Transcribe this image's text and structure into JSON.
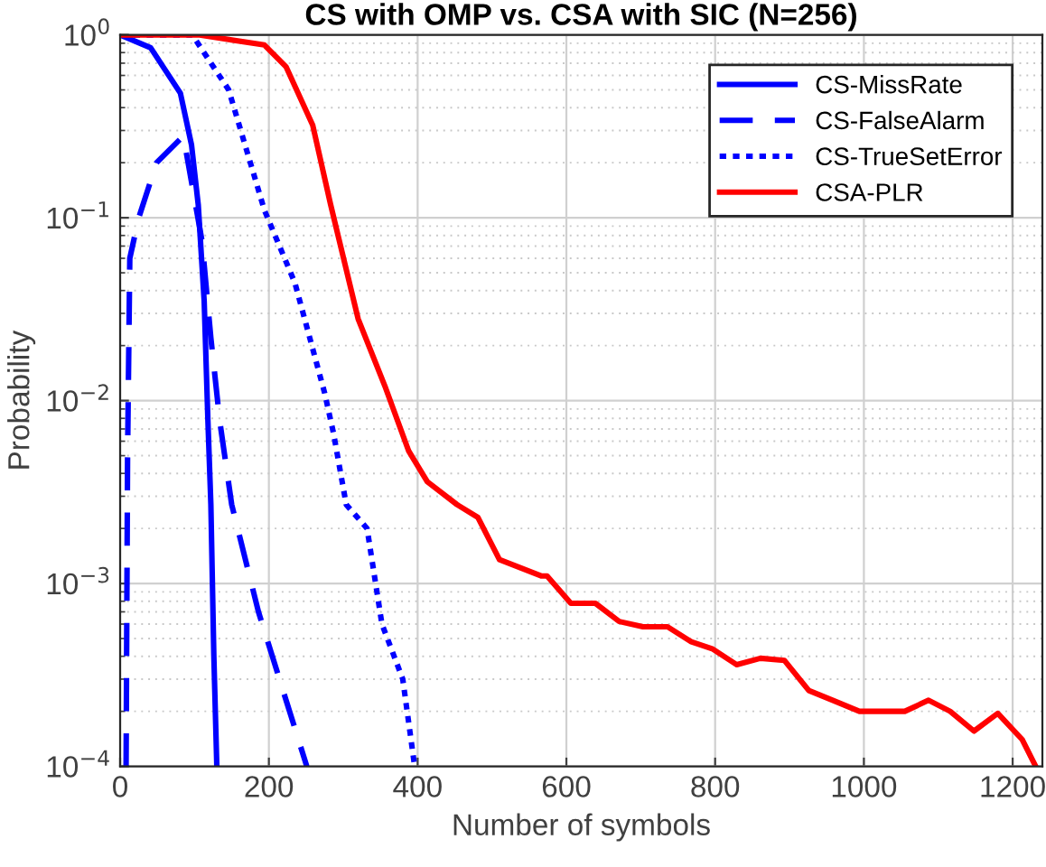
{
  "chart_data": {
    "type": "line",
    "title": "CS with OMP vs. CSA with SIC (N=256)",
    "xlabel": "Number of symbols",
    "ylabel": "Probability",
    "log": "y",
    "grid": true,
    "legend": "top right",
    "xlim": [
      0,
      1240
    ],
    "xticks": [
      0,
      200,
      400,
      600,
      800,
      1000,
      1200
    ],
    "ylim": [
      0.0001,
      1
    ],
    "yticks": [
      {
        "value": 0.0001,
        "label": "10$^{−4}$"
      },
      {
        "value": 0.001,
        "label": "10$^{−3}$"
      },
      {
        "value": 0.01,
        "label": "10$^{−2}$"
      },
      {
        "value": 0.1,
        "label": "10$^{−1}$"
      },
      {
        "value": 1,
        "label": "10$^{0}$"
      }
    ],
    "series": [
      {
        "name": "CS-MissRate",
        "color": "#0000ff",
        "line_style": "solid",
        "x": [
          0,
          41,
          81,
          96,
          105,
          113,
          118,
          122,
          126,
          130
        ],
        "values": [
          1.0,
          0.85,
          0.48,
          0.25,
          0.118,
          0.035,
          0.0078,
          0.0027,
          0.0004,
          0.0001
        ]
      },
      {
        "name": "CS-FalseAlarm",
        "color": "#0000ff",
        "line_style": "dashed",
        "x": [
          8,
          10,
          13,
          25,
          49,
          85,
          110,
          122,
          134,
          150,
          186,
          219,
          251
        ],
        "values": [
          0.0001,
          0.005,
          0.06,
          0.1,
          0.2,
          0.28,
          0.075,
          0.022,
          0.0077,
          0.0027,
          0.0007,
          0.00026,
          0.0001
        ]
      },
      {
        "name": "CS-TrueSetError",
        "color": "#0000ff",
        "line_style": "dotted",
        "x": [
          0,
          97,
          146,
          194,
          235,
          275,
          287,
          304,
          332,
          352,
          380,
          396
        ],
        "values": [
          1.0,
          1.0,
          0.5,
          0.11,
          0.044,
          0.011,
          0.0066,
          0.0027,
          0.002,
          0.0006,
          0.0003,
          0.0001
        ]
      },
      {
        "name": "CSA-PLR",
        "color": "#ff0000",
        "line_style": "solid",
        "x": [
          0,
          105,
          194,
          223,
          259,
          283,
          320,
          356,
          388,
          413,
          453,
          481,
          510,
          566,
          574,
          606,
          639,
          671,
          703,
          736,
          768,
          796,
          829,
          861,
          893,
          926,
          958,
          994,
          1055,
          1087,
          1116,
          1148,
          1180,
          1213,
          1231
        ],
        "values": [
          1.0,
          1.0,
          0.88,
          0.67,
          0.32,
          0.118,
          0.028,
          0.012,
          0.0053,
          0.0036,
          0.0027,
          0.0023,
          0.00135,
          0.0011,
          0.0011,
          0.00078,
          0.00078,
          0.00062,
          0.00058,
          0.00058,
          0.00048,
          0.00044,
          0.00036,
          0.00039,
          0.00038,
          0.00026,
          0.00023,
          0.0002,
          0.0002,
          0.00023,
          0.0002,
          0.000156,
          0.000195,
          0.00014,
          0.0001
        ]
      }
    ]
  }
}
